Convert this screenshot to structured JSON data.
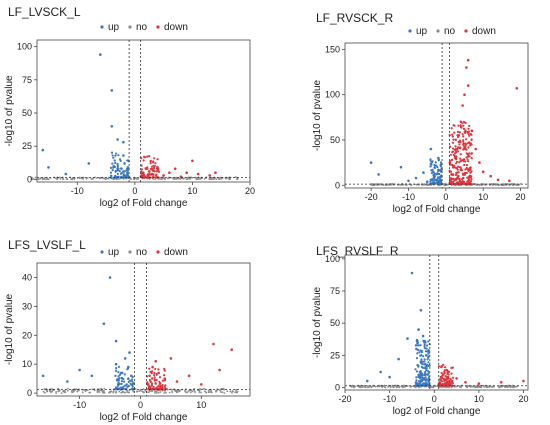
{
  "colors": {
    "up": "#3a78c2",
    "down": "#e0343c",
    "no": "#8c8c8c",
    "axis": "#444444",
    "cutoff": "#333333"
  },
  "chart_data": [
    {
      "type": "scatter",
      "title": "LF_LVSCK_L",
      "legend": [
        "up",
        "no",
        "down"
      ],
      "legend_position": "top",
      "xlabel": "log2 of Fold change",
      "ylabel": "-log10 of pvalue",
      "xlim": [
        -17,
        20
      ],
      "ylim": [
        -2,
        105
      ],
      "xticks": [
        -10,
        0,
        10,
        20
      ],
      "yticks": [
        0,
        25,
        50,
        75,
        100
      ],
      "cutoffs": {
        "x": [
          -1,
          1
        ],
        "y": 1.3
      },
      "series": [
        {
          "name": "up",
          "points": [
            [
              -16,
              22
            ],
            [
              -15,
              9
            ],
            [
              -12,
              4
            ],
            [
              -8,
              12
            ],
            [
              -6,
              94
            ],
            [
              -4,
              67
            ],
            [
              -4,
              40
            ],
            [
              -3,
              8
            ],
            [
              -3,
              30
            ],
            [
              -2,
              28
            ],
            [
              -2,
              18
            ],
            [
              -2,
              6
            ],
            [
              -1.8,
              12
            ],
            [
              -1.5,
              3
            ],
            [
              -1.4,
              7
            ],
            [
              -1.3,
              5
            ],
            [
              -1.2,
              9
            ],
            [
              -1.1,
              2
            ]
          ]
        },
        {
          "name": "down",
          "points": [
            [
              1.2,
              2
            ],
            [
              1.4,
              5
            ],
            [
              1.6,
              3
            ],
            [
              2,
              8
            ],
            [
              2.5,
              6
            ],
            [
              3,
              4
            ],
            [
              4,
              7
            ],
            [
              5,
              3
            ],
            [
              6,
              5
            ],
            [
              7,
              8
            ],
            [
              8,
              2
            ],
            [
              9,
              5
            ],
            [
              10,
              14
            ],
            [
              11,
              4
            ],
            [
              13,
              3
            ],
            [
              14,
              5
            ]
          ]
        }
      ]
    },
    {
      "type": "scatter",
      "title": "LF_RVSCK_R",
      "legend": [
        "up",
        "no",
        "down"
      ],
      "legend_position": "top",
      "xlabel": "log2 of Fold change",
      "ylabel": "-log10 of pvalue",
      "xlim": [
        -27,
        22
      ],
      "ylim": [
        -3,
        157
      ],
      "xticks": [
        -20,
        -10,
        0,
        10,
        20
      ],
      "yticks": [
        0,
        50,
        100,
        150
      ],
      "cutoffs": {
        "x": [
          -1,
          1
        ],
        "y": 1.3
      },
      "series": [
        {
          "name": "up",
          "points": [
            [
              -20,
              25
            ],
            [
              -18,
              12
            ],
            [
              -12,
              20
            ],
            [
              -10,
              5
            ],
            [
              -8,
              8
            ],
            [
              -6,
              14
            ],
            [
              -5,
              4
            ],
            [
              -4,
              40
            ],
            [
              -3,
              22
            ],
            [
              -3,
              10
            ],
            [
              -2.5,
              6
            ],
            [
              -2,
              30
            ],
            [
              -2,
              16
            ],
            [
              -1.8,
              4
            ],
            [
              -1.5,
              9
            ],
            [
              -1.3,
              3
            ]
          ]
        },
        {
          "name": "down",
          "points": [
            [
              1.2,
              5
            ],
            [
              1.5,
              12
            ],
            [
              2,
              20
            ],
            [
              2.5,
              30
            ],
            [
              3,
              40
            ],
            [
              3.5,
              55
            ],
            [
              4,
              70
            ],
            [
              4.5,
              88
            ],
            [
              5,
              100
            ],
            [
              5.5,
              130
            ],
            [
              6,
              138
            ],
            [
              6,
              110
            ],
            [
              7,
              60
            ],
            [
              8,
              40
            ],
            [
              9,
              25
            ],
            [
              10,
              15
            ],
            [
              12,
              10
            ],
            [
              14,
              6
            ],
            [
              17,
              5
            ],
            [
              19,
              107
            ]
          ]
        }
      ]
    },
    {
      "type": "scatter",
      "title": "LFS_LVSLF_L",
      "legend": [
        "up",
        "no",
        "down"
      ],
      "legend_position": "top",
      "xlabel": "log2 of Fold change",
      "ylabel": "-log10 of pvalue",
      "xlim": [
        -17,
        18
      ],
      "ylim": [
        -1,
        45
      ],
      "xticks": [
        -10,
        0,
        10
      ],
      "yticks": [
        0,
        10,
        20,
        30,
        40
      ],
      "cutoffs": {
        "x": [
          -1,
          1
        ],
        "y": 1.3
      },
      "series": [
        {
          "name": "up",
          "points": [
            [
              -16,
              6
            ],
            [
              -12,
              4
            ],
            [
              -10,
              8
            ],
            [
              -8,
              6
            ],
            [
              -6,
              24
            ],
            [
              -5,
              40
            ],
            [
              -4,
              10
            ],
            [
              -4,
              18
            ],
            [
              -3,
              7
            ],
            [
              -2.5,
              12
            ],
            [
              -2,
              9
            ],
            [
              -2,
              5
            ],
            [
              -1.8,
              14
            ],
            [
              -1.5,
              6
            ],
            [
              -1.3,
              3
            ]
          ]
        },
        {
          "name": "down",
          "points": [
            [
              1.2,
              3
            ],
            [
              1.5,
              6
            ],
            [
              2,
              9
            ],
            [
              2.5,
              11
            ],
            [
              3,
              7
            ],
            [
              4,
              5
            ],
            [
              5,
              12
            ],
            [
              6,
              4
            ],
            [
              8,
              6
            ],
            [
              10,
              3
            ],
            [
              12,
              17
            ],
            [
              13,
              8
            ],
            [
              15,
              15
            ]
          ]
        }
      ]
    },
    {
      "type": "scatter",
      "title": "LFS_RVSLF_R",
      "legend": [
        "up",
        "no",
        "down"
      ],
      "legend_position": "top",
      "xlabel": "log2 of Fold change",
      "ylabel": "-log10 of pvalue",
      "xlim": [
        -20,
        21
      ],
      "ylim": [
        -2,
        103
      ],
      "xticks": [
        -20,
        -10,
        0,
        10,
        20
      ],
      "yticks": [
        0,
        25,
        50,
        75,
        100
      ],
      "cutoffs": {
        "x": [
          -1,
          1
        ],
        "y": 1.3
      },
      "series": [
        {
          "name": "up",
          "points": [
            [
              -15,
              5
            ],
            [
              -12,
              12
            ],
            [
              -10,
              8
            ],
            [
              -8,
              22
            ],
            [
              -6,
              38
            ],
            [
              -5,
              89
            ],
            [
              -4,
              30
            ],
            [
              -3.5,
              45
            ],
            [
              -3,
              60
            ],
            [
              -3,
              20
            ],
            [
              -2.5,
              40
            ],
            [
              -2,
              35
            ],
            [
              -2,
              15
            ],
            [
              -1.8,
              25
            ],
            [
              -1.5,
              10
            ],
            [
              -1.3,
              5
            ]
          ]
        },
        {
          "name": "down",
          "points": [
            [
              1.2,
              4
            ],
            [
              1.5,
              8
            ],
            [
              2,
              10
            ],
            [
              2.5,
              6
            ],
            [
              3,
              12
            ],
            [
              4,
              5
            ],
            [
              5,
              7
            ],
            [
              7,
              4
            ],
            [
              10,
              3
            ],
            [
              15,
              4
            ],
            [
              20,
              5
            ]
          ]
        }
      ]
    }
  ]
}
